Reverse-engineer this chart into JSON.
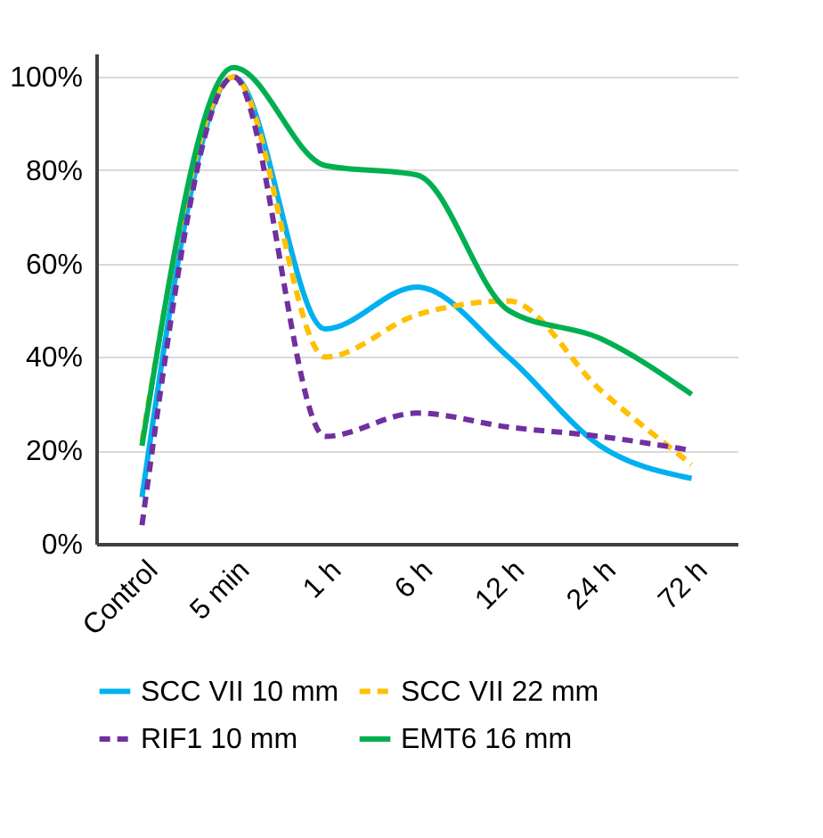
{
  "chart_data": {
    "type": "line",
    "categories": [
      "Control",
      "5 min",
      "1 h",
      "6 h",
      "12 h",
      "24 h",
      "72 h"
    ],
    "series": [
      {
        "name": "SCC VII 10 mm",
        "color": "#00b0f0",
        "line_style": "solid",
        "values": [
          10,
          100,
          46,
          55,
          40,
          21,
          14
        ]
      },
      {
        "name": "SCC VII 22 mm",
        "color": "#ffc000",
        "line_style": "dashed",
        "values": [
          22,
          100,
          40,
          49,
          52,
          33,
          17
        ]
      },
      {
        "name": "RIF1 10 mm",
        "color": "#7030a0",
        "line_style": "dashed",
        "values": [
          4,
          100,
          23,
          28,
          25,
          23,
          20
        ]
      },
      {
        "name": "EMT6 16 mm",
        "color": "#00b050",
        "line_style": "solid",
        "values": [
          21,
          102,
          81,
          79,
          50,
          44,
          32
        ]
      }
    ],
    "ylim": [
      0,
      105
    ],
    "yticks": [
      {
        "value": 0,
        "label": "0%"
      },
      {
        "value": 20,
        "label": "20%"
      },
      {
        "value": 40,
        "label": "40%"
      },
      {
        "value": 60,
        "label": "60%"
      },
      {
        "value": 80,
        "label": "80%"
      },
      {
        "value": 100,
        "label": "100%"
      }
    ],
    "grid": "y",
    "legend": "bottom",
    "marker": "none"
  }
}
